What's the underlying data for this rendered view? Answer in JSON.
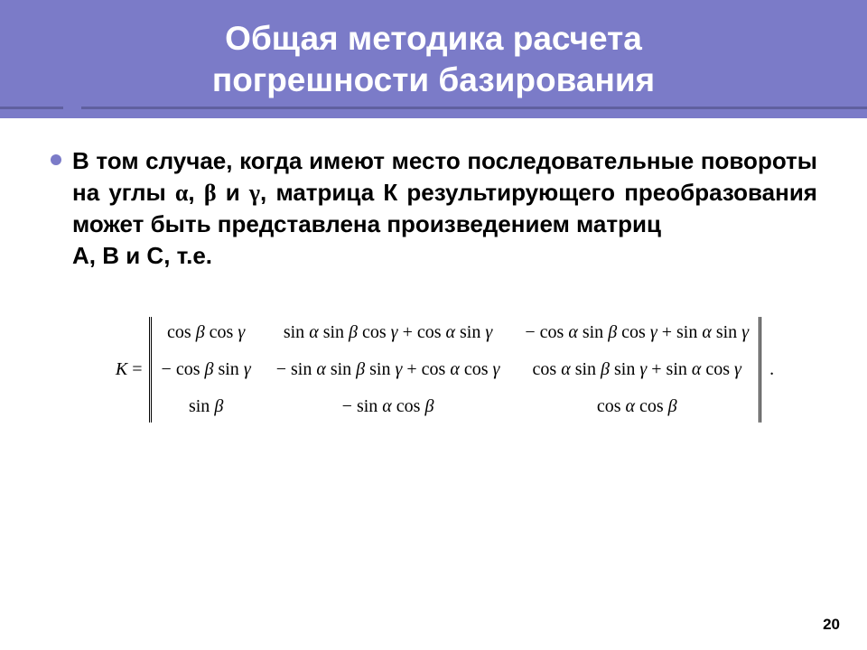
{
  "header": {
    "title_line1": "Общая методика расчета",
    "title_line2": "погрешности базирования"
  },
  "body": {
    "text_part1": "В том случае, когда имеют место последовательные повороты на углы ",
    "alpha": "α",
    "sep1": ", ",
    "beta": "β",
    "sep2": " и ",
    "gamma": "γ",
    "text_part2": ", матрица К результирующего преобразования может быть представлена произведением матриц",
    "text_part3": " А,  В  и  С,  т.е."
  },
  "matrix": {
    "lhs": "K =",
    "cells": [
      [
        "cos β cos γ",
        "sin α sin β cos γ + cos α sin γ",
        "− cos α sin β cos γ + sin α sin γ"
      ],
      [
        "− cos β sin γ",
        "− sin α sin β sin γ + cos α cos γ",
        "cos α sin β sin γ + sin α cos γ"
      ],
      [
        "sin β",
        "− sin α cos β",
        "cos α cos β"
      ]
    ],
    "period": "."
  },
  "page_number": "20",
  "style": {
    "header_bg": "#7b7bc8",
    "header_text": "#ffffff",
    "title_fontsize": 37,
    "body_fontsize": 26,
    "matrix_fontsize": 20,
    "bullet_color": "#7b7bc8",
    "divider_color": "#60609f",
    "bg": "#ffffff"
  }
}
